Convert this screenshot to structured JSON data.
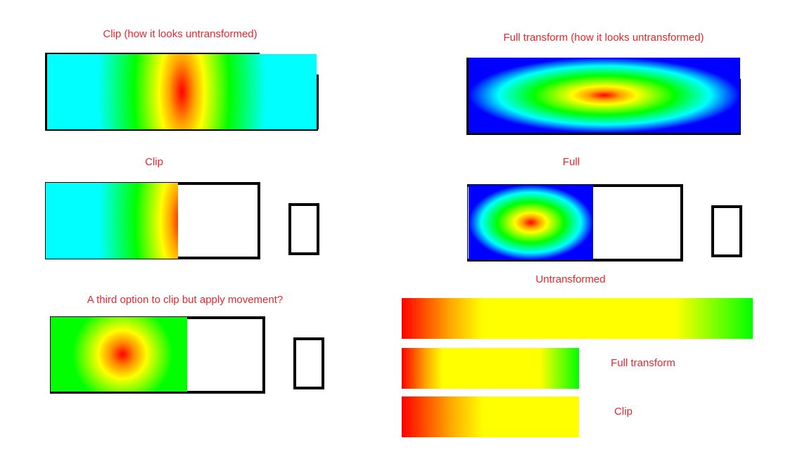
{
  "labels": {
    "clip_untransformed": "Clip (how it looks untransformed)",
    "full_untransformed": "Full transform (how it looks untransformed)",
    "clip": "Clip",
    "full": "Full",
    "third_option": "A third option to clip but apply movement?",
    "untransformed": "Untransformed",
    "full_transform": "Full transform",
    "clip_short": "Clip"
  },
  "colors": {
    "label": "#e8262b",
    "outline": "#000000"
  }
}
